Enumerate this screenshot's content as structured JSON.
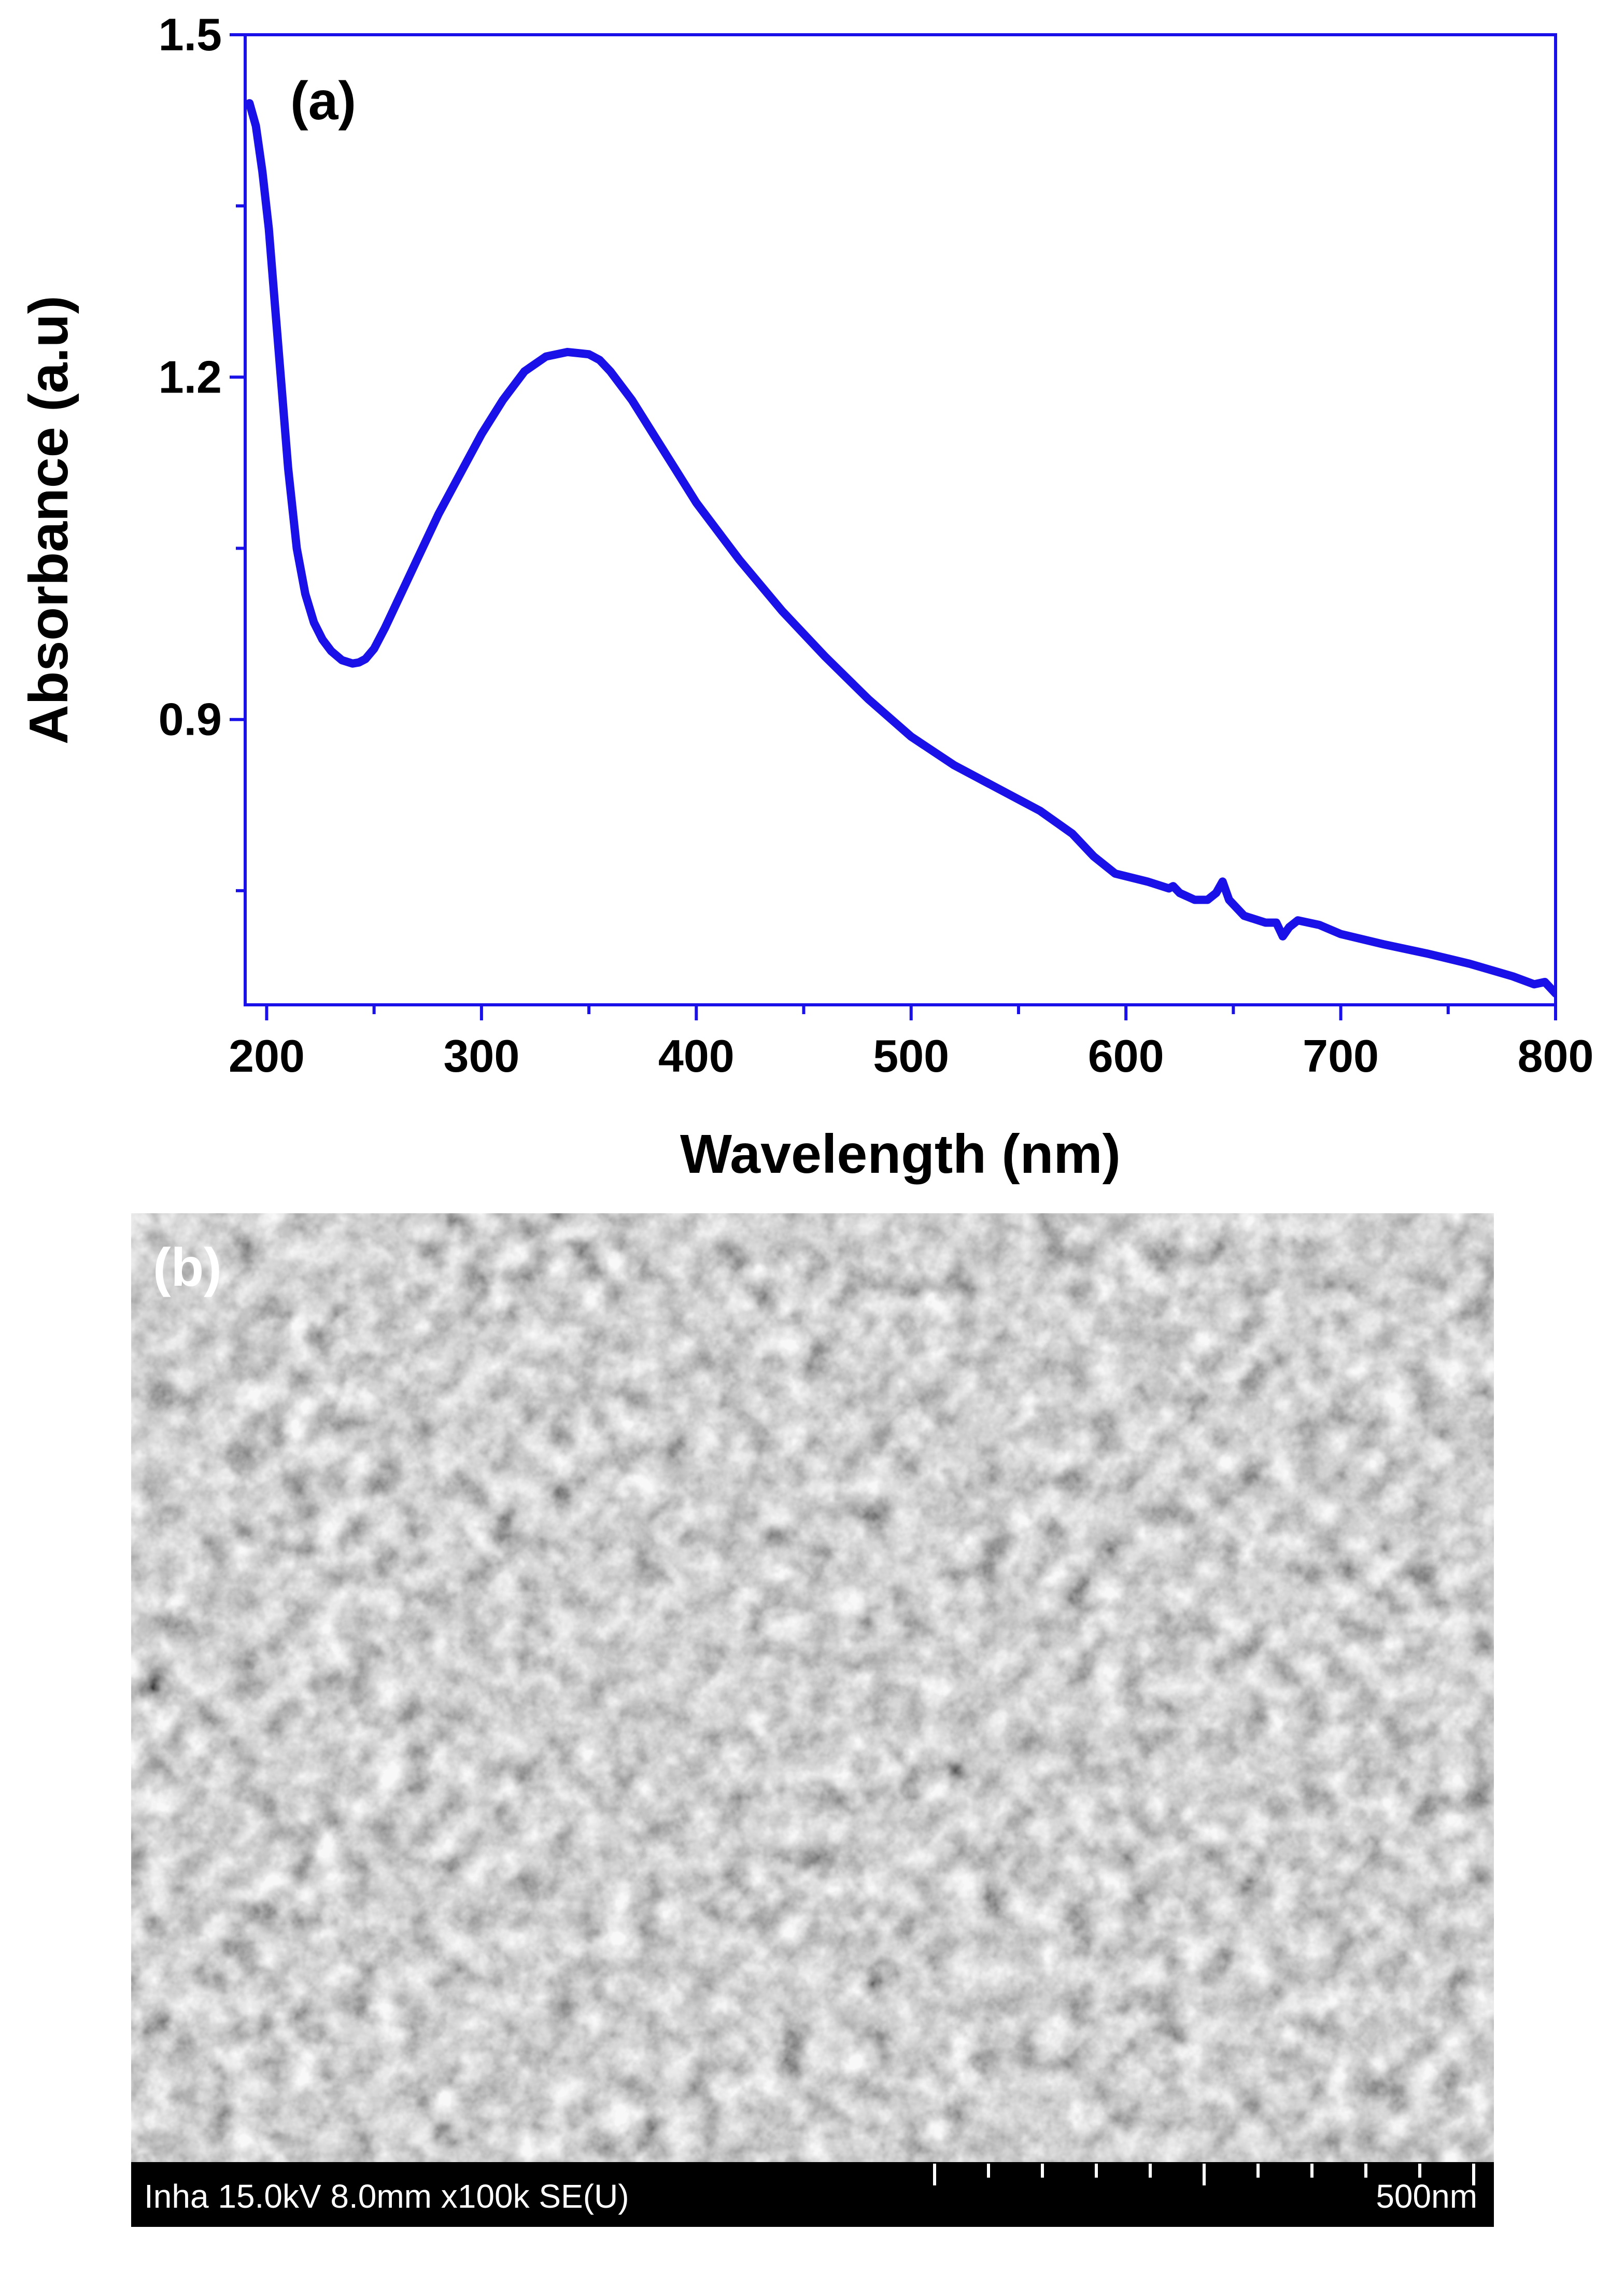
{
  "chart_data": {
    "type": "line",
    "panel_label": "(a)",
    "xlabel": "Wavelength (nm)",
    "ylabel": "Absorbance (a.u)",
    "xlim": [
      190,
      800
    ],
    "ylim": [
      0.65,
      1.5
    ],
    "x_ticks": [
      200,
      300,
      400,
      500,
      600,
      700,
      800
    ],
    "x_tick_labels": [
      "200",
      "300",
      "400",
      "500",
      "600",
      "700",
      "800"
    ],
    "x_minor_ticks": [
      250,
      350,
      450,
      550,
      650,
      750
    ],
    "y_ticks": [
      0.9,
      1.2,
      1.5
    ],
    "y_tick_labels": [
      "0.9",
      "1.2",
      "1.5"
    ],
    "y_minor_ticks": [
      0.75,
      1.05,
      1.35
    ],
    "grid": false,
    "series": [
      {
        "name": "Absorbance",
        "color": "#1a10e8",
        "x": [
          192,
          195,
          198,
          201,
          204,
          207,
          210,
          214,
          218,
          222,
          226,
          230,
          235,
          240,
          243,
          246,
          250,
          255,
          260,
          265,
          270,
          280,
          290,
          300,
          310,
          320,
          330,
          340,
          345,
          350,
          355,
          360,
          370,
          380,
          390,
          400,
          420,
          440,
          460,
          480,
          500,
          520,
          540,
          560,
          575,
          585,
          595,
          610,
          620,
          622,
          625,
          632,
          638,
          642,
          645,
          648,
          655,
          665,
          670,
          673,
          676,
          680,
          690,
          700,
          720,
          740,
          760,
          780,
          790,
          795,
          800
        ],
        "y": [
          1.44,
          1.42,
          1.38,
          1.33,
          1.26,
          1.19,
          1.12,
          1.05,
          1.01,
          0.985,
          0.97,
          0.96,
          0.952,
          0.949,
          0.95,
          0.953,
          0.962,
          0.98,
          1.0,
          1.02,
          1.04,
          1.08,
          1.115,
          1.15,
          1.18,
          1.205,
          1.218,
          1.222,
          1.221,
          1.22,
          1.215,
          1.205,
          1.18,
          1.15,
          1.12,
          1.09,
          1.04,
          0.995,
          0.955,
          0.918,
          0.885,
          0.86,
          0.84,
          0.82,
          0.8,
          0.78,
          0.765,
          0.758,
          0.752,
          0.754,
          0.748,
          0.742,
          0.742,
          0.748,
          0.758,
          0.742,
          0.728,
          0.722,
          0.722,
          0.71,
          0.718,
          0.724,
          0.72,
          0.712,
          0.703,
          0.695,
          0.686,
          0.675,
          0.668,
          0.67,
          0.66
        ]
      }
    ]
  },
  "sem": {
    "panel_label": "(b)",
    "instrument_text": "Inha 15.0kV 8.0mm x100k SE(U)",
    "scale_label": "500nm"
  },
  "colors": {
    "axis_frame": "#1a10e8",
    "curve": "#1a10e8",
    "sem_base": "#7a7a7a",
    "sem_bar": "#000000"
  }
}
